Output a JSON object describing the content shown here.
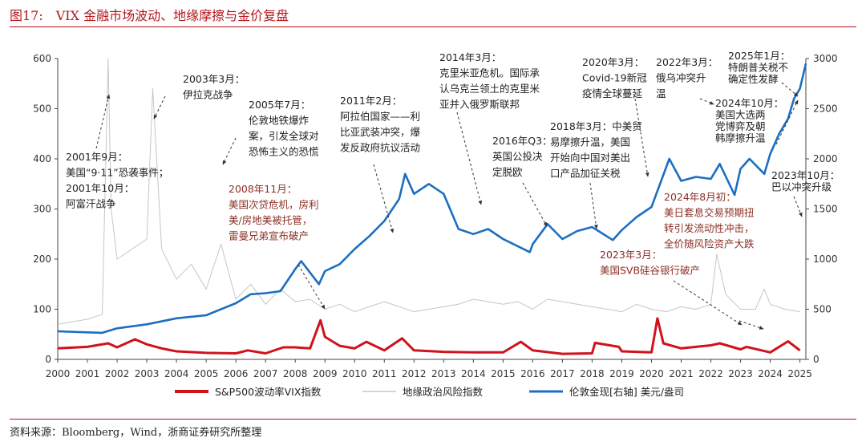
{
  "title": "图17:　VIX 金融市场波动、地缘摩擦与金价复盘",
  "source": "资料来源：Bloomberg，Wind，浙商证券研究所整理",
  "colors": {
    "vix": "#d0121b",
    "geo": "#c6c6c6",
    "gold": "#1c6fc0",
    "brown": "#8b2f25",
    "black": "#222222",
    "accent": "#b3161c"
  },
  "chart_data": {
    "type": "line",
    "x_ticks": [
      "2000",
      "2001",
      "2002",
      "2003",
      "2004",
      "2005",
      "2006",
      "2007",
      "2008",
      "2009",
      "2010",
      "2011",
      "2012",
      "2013",
      "2014",
      "2015",
      "2016",
      "2017",
      "2018",
      "2019",
      "2020",
      "2021",
      "2022",
      "2023",
      "2024",
      "2025"
    ],
    "xlim": [
      2000,
      2025.2
    ],
    "y_left": {
      "ylim": [
        0,
        600
      ],
      "ticks": [
        "0",
        "100",
        "200",
        "300",
        "400",
        "500",
        "600"
      ]
    },
    "y_right": {
      "ylim": [
        0,
        3000
      ],
      "ticks": [
        "0",
        "500",
        "1000",
        "1500",
        "2000",
        "2500",
        "3000"
      ],
      "label": ""
    },
    "legend": {
      "position": "bottom"
    },
    "series": [
      {
        "name": "S&P500波动率VIX指数",
        "axis": "left",
        "color": "#d0121b",
        "x": [
          2000,
          2001,
          2001.7,
          2002,
          2002.6,
          2003,
          2003.5,
          2004,
          2005,
          2006,
          2006.4,
          2007,
          2007.6,
          2008,
          2008.5,
          2008.85,
          2009,
          2009.5,
          2010,
          2010.4,
          2011,
          2011.6,
          2012,
          2013,
          2014,
          2015,
          2015.6,
          2016,
          2017,
          2018,
          2018.1,
          2018.9,
          2019,
          2020,
          2020.2,
          2020.4,
          2021,
          2022,
          2022.3,
          2023,
          2023.2,
          2024,
          2024.6,
          2025
        ],
        "y": [
          22,
          25,
          32,
          24,
          40,
          30,
          22,
          16,
          13,
          12,
          18,
          12,
          24,
          24,
          22,
          78,
          45,
          27,
          22,
          35,
          18,
          42,
          18,
          15,
          14,
          14,
          35,
          18,
          11,
          12,
          33,
          25,
          16,
          14,
          82,
          32,
          22,
          28,
          32,
          20,
          25,
          14,
          36,
          18
        ]
      },
      {
        "name": "地缘政治风险指数",
        "axis": "left",
        "color": "#c6c6c6",
        "x": [
          2000,
          2000.5,
          2001,
          2001.5,
          2001.7,
          2001.8,
          2002,
          2002.5,
          2003,
          2003.2,
          2003.5,
          2004,
          2004.5,
          2005,
          2005.5,
          2006,
          2006.5,
          2007,
          2007.5,
          2008,
          2008.5,
          2009,
          2009.5,
          2010,
          2010.5,
          2011,
          2011.5,
          2012,
          2012.5,
          2013,
          2013.5,
          2014,
          2014.5,
          2015,
          2015.5,
          2016,
          2016.5,
          2017,
          2017.5,
          2018,
          2018.5,
          2019,
          2019.5,
          2020,
          2020.5,
          2021,
          2021.5,
          2022,
          2022.2,
          2022.5,
          2023,
          2023.5,
          2023.8,
          2024,
          2024.5,
          2025
        ],
        "y": [
          70,
          75,
          80,
          90,
          600,
          300,
          200,
          220,
          240,
          540,
          220,
          160,
          190,
          140,
          230,
          120,
          150,
          110,
          140,
          115,
          120,
          100,
          110,
          95,
          105,
          115,
          105,
          95,
          100,
          105,
          110,
          120,
          115,
          110,
          115,
          100,
          120,
          115,
          110,
          105,
          100,
          95,
          110,
          100,
          95,
          105,
          100,
          110,
          210,
          130,
          100,
          100,
          140,
          110,
          100,
          95
        ]
      },
      {
        "name": "伦敦金现[右轴] 美元/盎司",
        "axis": "right",
        "color": "#1c6fc0",
        "x": [
          2000,
          2001,
          2001.5,
          2002,
          2003,
          2004,
          2005,
          2006,
          2006.5,
          2007,
          2007.5,
          2008,
          2008.2,
          2008.8,
          2009,
          2009.5,
          2010,
          2010.5,
          2011,
          2011.5,
          2011.7,
          2012,
          2012.5,
          2013,
          2013.5,
          2014,
          2014.5,
          2015,
          2015.9,
          2016,
          2016.5,
          2017,
          2017.5,
          2018,
          2018.7,
          2019,
          2019.5,
          2020,
          2020.6,
          2021,
          2021.5,
          2022,
          2022.3,
          2022.8,
          2023,
          2023.3,
          2023.8,
          2024,
          2024.3,
          2024.6,
          2024.8,
          2025,
          2025.2
        ],
        "y": [
          280,
          270,
          265,
          310,
          350,
          410,
          440,
          560,
          650,
          660,
          680,
          900,
          980,
          750,
          880,
          950,
          1100,
          1230,
          1380,
          1600,
          1850,
          1650,
          1750,
          1650,
          1300,
          1250,
          1300,
          1200,
          1070,
          1150,
          1350,
          1200,
          1280,
          1320,
          1190,
          1290,
          1420,
          1520,
          2000,
          1780,
          1820,
          1800,
          1950,
          1640,
          1900,
          2000,
          1850,
          2050,
          2250,
          2400,
          2600,
          2700,
          2950
        ]
      }
    ],
    "annotations": [
      {
        "lines": [
          "2001年9月：",
          "美国“9·11”恐袭事件；",
          "2001年10月：",
          "阿富汗战争"
        ],
        "color": "black"
      },
      {
        "lines": [
          "2003年3月：",
          "伊拉克战争"
        ],
        "color": "black"
      },
      {
        "lines": [
          "2005年7月：",
          "伦敦地铁爆炸",
          "案，引发全球对",
          "恐怖主义的恐慌"
        ],
        "color": "black"
      },
      {
        "lines": [
          "2008年11月：",
          "美国次贷危机，房利",
          "美/房地美被托管，",
          "雷曼兄弟宣布破产"
        ],
        "color": "brown"
      },
      {
        "lines": [
          "2011年2月：",
          "阿拉伯国家——利",
          "比亚武装冲突，爆",
          "发反政府抗议活动"
        ],
        "color": "black"
      },
      {
        "lines": [
          "2014年3月：",
          "克里米亚危机。国际承",
          "认乌克兰领土的克里米",
          "亚并入俄罗斯联邦"
        ],
        "color": "black"
      },
      {
        "lines": [
          "2016年Q3：",
          "英国公投决",
          "定脱欧"
        ],
        "color": "black"
      },
      {
        "lines": [
          "2018年3月：中美贸",
          "易摩擦升温，美国",
          "开始向中国对美出",
          "口产品加征关税"
        ],
        "color": "black"
      },
      {
        "lines": [
          "2020年3月：",
          "Covid-19新冠",
          "疫情全球蔓延"
        ],
        "color": "black"
      },
      {
        "lines": [
          "2022年3月：",
          "俄乌冲突升",
          "温"
        ],
        "color": "black"
      },
      {
        "lines": [
          "2025年1月：",
          "特朗普关税不",
          "确定性发酵"
        ],
        "color": "black"
      },
      {
        "lines": [
          "2024年10月：",
          "美国大选两",
          "党博弈及朝",
          "韩摩擦升温"
        ],
        "color": "black"
      },
      {
        "lines": [
          "2023年10月：",
          "巴以冲突升级"
        ],
        "color": "black"
      },
      {
        "lines": [
          "2024年8月初：",
          "美日套息交易预期扭",
          "转引发流动性冲击，",
          "全价随风险资产大跌"
        ],
        "color": "brown"
      },
      {
        "lines": [
          "2023年3月：",
          "美国SVB硅谷银行破产"
        ],
        "color": "brown"
      }
    ]
  }
}
